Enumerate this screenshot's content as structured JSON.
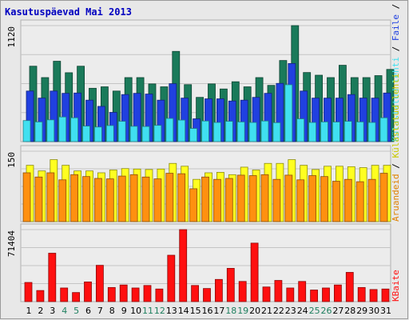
{
  "chart_data": {
    "type": "bar",
    "title": "Kasutuspäevad Mai 2013",
    "categories": [
      "1",
      "2",
      "3",
      "4",
      "5",
      "6",
      "7",
      "8",
      "9",
      "10",
      "11",
      "12",
      "13",
      "14",
      "15",
      "16",
      "17",
      "18",
      "19",
      "20",
      "21",
      "22",
      "23",
      "24",
      "25",
      "26",
      "27",
      "28",
      "29",
      "30",
      "31"
    ],
    "weekend_days": [
      "4",
      "5",
      "11",
      "12",
      "18",
      "19",
      "25",
      "26"
    ],
    "grid": true,
    "panels": [
      {
        "ytick": "1120",
        "ymax": 1120,
        "legend_labels": [
          "Pöördumisi",
          "Faile",
          "Külastatud lehti"
        ],
        "series": [
          {
            "name": "Pöördumisi",
            "color": "#1a7a5a",
            "values": [
              728,
              618,
              776,
              665,
              728,
              515,
              529,
              488,
              618,
              618,
              557,
              529,
              871,
              550,
              427,
              557,
              508,
              578,
              529,
              618,
              543,
              783,
              1120,
              667,
              641,
              618,
              737,
              618,
              618,
              637,
              697
            ]
          },
          {
            "name": "Faile",
            "color": "#2040e0",
            "values": [
              488,
              420,
              488,
              466,
              469,
              400,
              340,
              282,
              454,
              466,
              459,
              400,
              559,
              420,
              220,
              413,
              413,
              392,
              400,
              427,
              466,
              562,
              754,
              488,
              420,
              420,
              420,
              454,
              420,
              420,
              469
            ]
          },
          {
            "name": "Külastatud lehti",
            "color": "#40e0f0",
            "values": [
              203,
              190,
              210,
              238,
              230,
              150,
              141,
              155,
              196,
              148,
              146,
              157,
              224,
              208,
              127,
              199,
              185,
              196,
              190,
              185,
              199,
              183,
              549,
              220,
              185,
              190,
              189,
              196,
              190,
              185,
              230
            ]
          }
        ]
      },
      {
        "ytick": "150",
        "ymax": 150,
        "legend_labels": [
          "Aruandeid"
        ],
        "series": [
          {
            "name": "Aruandeid",
            "color": "#ffff20",
            "values": [
              120,
              108,
              132,
              120,
              108,
              108,
              104,
              110,
              113,
              112,
              111,
              112,
              124,
              118,
              90,
              104,
              105,
              100,
              116,
              110,
              124,
              124,
              132,
              120,
              111,
              118,
              118,
              117,
              115,
              120,
              120
            ]
          },
          {
            "name": "",
            "color": "#ff9010",
            "values": [
              104,
              95,
              104,
              89,
              100,
              96,
              92,
              91,
              97,
              100,
              95,
              91,
              103,
              102,
              70,
              95,
              90,
              92,
              99,
              98,
              100,
              90,
              99,
              89,
              98,
              96,
              86,
              90,
              85,
              90,
              103
            ]
          }
        ]
      },
      {
        "ytick": "71404",
        "ymax": 71404,
        "legend_labels": [
          "KBaite"
        ],
        "series": [
          {
            "name": "KBaite",
            "color": "#ff1010",
            "values": [
              19000,
              11000,
              48000,
              13500,
              9000,
              19500,
              36000,
              14000,
              16500,
              13500,
              16000,
              12500,
              46000,
              71404,
              16000,
              13000,
              22000,
              33000,
              20000,
              58000,
              14500,
              21000,
              13500,
              20000,
              11500,
              13500,
              16500,
              29000,
              14000,
              12000,
              12500
            ]
          }
        ]
      }
    ]
  },
  "colors": {
    "background": "#e8e8e8",
    "panel_fill": "#ececec",
    "panel_border": "#b0b0b0",
    "grid": "#c4c4c4",
    "title": "#0000c0",
    "weekday_label": "#000000",
    "weekend_label": "#208060"
  }
}
